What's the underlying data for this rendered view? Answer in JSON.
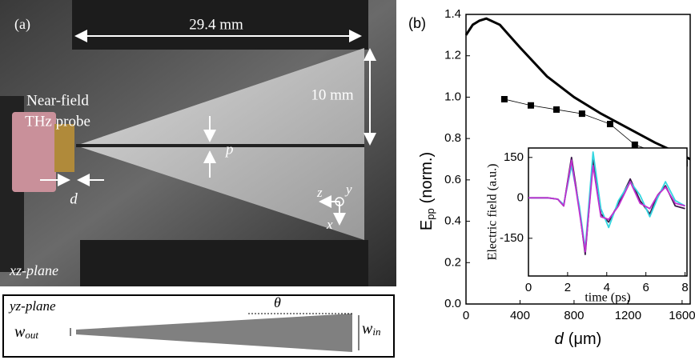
{
  "panel_a": {
    "label": "(a)",
    "length_label": "29.4 mm",
    "probe_label": [
      "Near-field",
      "THz probe"
    ],
    "height_label": "10 mm",
    "gap_label": "p",
    "distance_label": "d",
    "axes": [
      "z",
      "y",
      "x"
    ],
    "view_top": "xz-plane",
    "view_side": "yz-plane",
    "angle": "θ",
    "w_out": {
      "symbol": "w",
      "subscript": "out"
    },
    "w_in": {
      "symbol": "w",
      "subscript": "in"
    }
  },
  "chart_data": [
    {
      "type": "line",
      "panel_label": "(b)",
      "xlabel": {
        "symbol": "d",
        "unit": "(μm)"
      },
      "ylabel": {
        "symbol": "E",
        "subscript": "pp",
        "unit": "(norm.)"
      },
      "xlim": [
        0,
        1660
      ],
      "ylim": [
        0,
        1.4
      ],
      "xticks": [
        0,
        400,
        800,
        1200,
        1600
      ],
      "yticks": [
        {
          "value": 0,
          "label": "0.0"
        },
        0.2,
        0.4,
        0.6,
        0.8,
        {
          "value": 1,
          "label": "1.0"
        },
        1.2,
        1.4
      ],
      "series": [
        {
          "color": "#000000",
          "style": "solid",
          "x": [
            0,
            50,
            100,
            150,
            250,
            400,
            600,
            800,
            1000,
            1200,
            1400,
            1600,
            1660
          ],
          "values": [
            1.3,
            1.35,
            1.37,
            1.38,
            1.35,
            1.24,
            1.1,
            1.0,
            0.92,
            0.85,
            0.78,
            0.72,
            0.7
          ]
        },
        {
          "color": "#000000",
          "style": "markers",
          "x": [
            284,
            480,
            670,
            859,
            1067,
            1250,
            1422,
            1618
          ],
          "values": [
            0.99,
            0.96,
            0.94,
            0.92,
            0.87,
            0.77,
            0.73,
            0.68
          ]
        }
      ]
    },
    {
      "type": "line",
      "xlabel": "time (ps)",
      "ylabel": "Electric field (a.u.)",
      "xlim": [
        0,
        8.1
      ],
      "ylim": [
        -290,
        185
      ],
      "xticks": [
        0,
        2,
        4,
        6,
        8
      ],
      "yticks": [
        -150,
        0,
        150
      ],
      "x": [
        0,
        1,
        1.5,
        1.8,
        2.2,
        2.6,
        2.9,
        3.3,
        3.7,
        4.1,
        4.6,
        5.2,
        5.7,
        6.2,
        6.6,
        7.0,
        7.5,
        8
      ],
      "series": [
        {
          "color": "#3a1a4a",
          "values": [
            0,
            0,
            -5,
            -30,
            150,
            -40,
            -210,
            140,
            -60,
            -90,
            -20,
            70,
            -10,
            -60,
            10,
            45,
            -30,
            -40
          ]
        },
        {
          "color": "#33d6e0",
          "values": [
            0,
            0,
            -5,
            -25,
            120,
            -30,
            -190,
            170,
            -40,
            -110,
            -10,
            60,
            10,
            -70,
            0,
            60,
            -10,
            -30
          ]
        },
        {
          "color": "#c030d0",
          "values": [
            0,
            0,
            -5,
            -30,
            140,
            -50,
            -200,
            120,
            -70,
            -80,
            -30,
            60,
            -20,
            -40,
            10,
            40,
            -20,
            -30
          ]
        }
      ]
    }
  ]
}
